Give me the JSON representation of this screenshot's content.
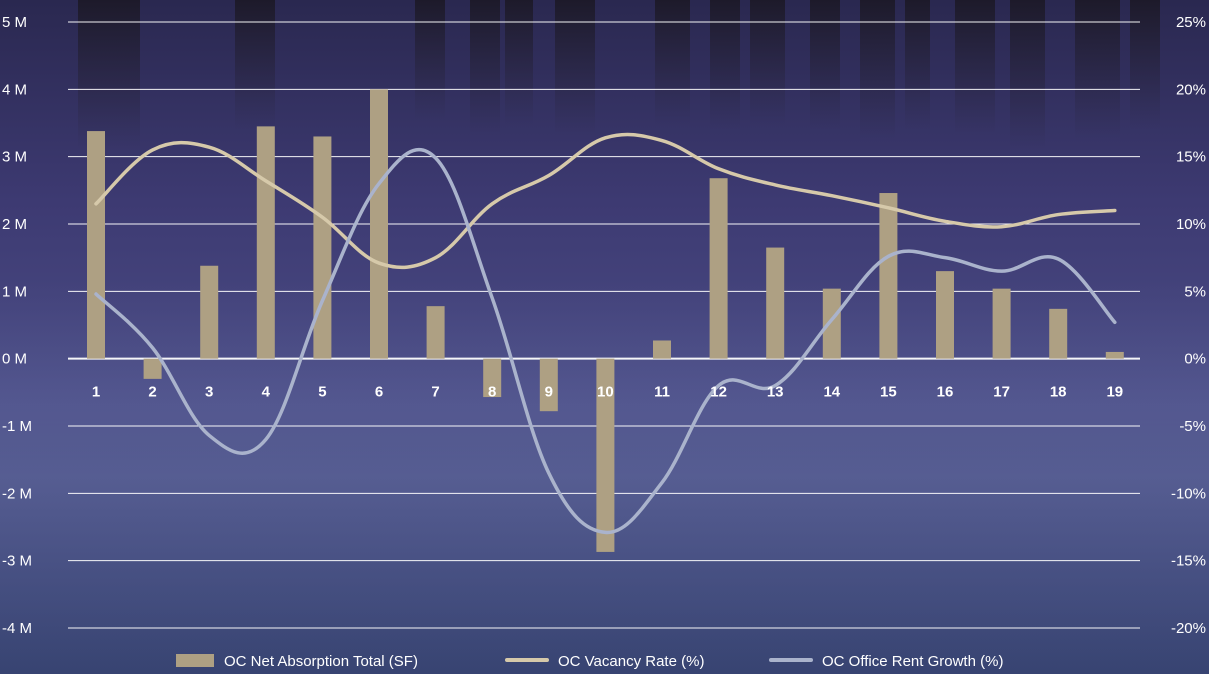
{
  "chart_data": {
    "type": "bar",
    "categories": [
      "1",
      "2",
      "3",
      "4",
      "5",
      "6",
      "7",
      "8",
      "9",
      "10",
      "11",
      "12",
      "13",
      "14",
      "15",
      "16",
      "17",
      "18",
      "19"
    ],
    "series": [
      {
        "name": "OC Net Absorption Total (SF)",
        "kind": "bar",
        "axis": "left",
        "color": "#aea083",
        "values": [
          3.38,
          -0.3,
          1.38,
          3.45,
          3.3,
          4.0,
          0.78,
          -0.57,
          -0.78,
          -2.87,
          0.27,
          2.68,
          1.65,
          1.04,
          2.46,
          1.3,
          1.04,
          0.74,
          0.1
        ]
      },
      {
        "name": "OC Vacancy Rate (%)",
        "kind": "line",
        "axis": "right",
        "color": "#d6c9aa",
        "values": [
          11.5,
          15.5,
          15.7,
          13.2,
          10.5,
          7.1,
          7.5,
          11.5,
          13.6,
          16.4,
          16.2,
          14.1,
          12.9,
          12.1,
          11.2,
          10.2,
          9.8,
          10.7,
          11.0
        ]
      },
      {
        "name": "OC Office Rent Growth (%)",
        "kind": "line",
        "axis": "right",
        "color": "#aab3cc",
        "values": [
          4.8,
          0.8,
          -5.7,
          -6.0,
          4.3,
          13.0,
          14.9,
          4.5,
          -8.5,
          -12.9,
          -9.2,
          -2.0,
          -2.0,
          2.9,
          7.6,
          7.5,
          6.5,
          7.4,
          2.7
        ]
      }
    ],
    "left_axis": {
      "ticks": [
        "5 M",
        "4 M",
        "3 M",
        "2 M",
        "1 M",
        "0 M",
        "-1 M",
        "-2 M",
        "-3 M",
        "-4 M"
      ],
      "range": [
        -4,
        5
      ],
      "unit": "M"
    },
    "right_axis": {
      "ticks": [
        "25%",
        "20%",
        "15%",
        "10%",
        "5%",
        "0%",
        "-5%",
        "-10%",
        "-15%",
        "-20%"
      ],
      "range": [
        -20,
        25
      ],
      "unit": "%"
    },
    "grid": true,
    "legend_position": "bottom",
    "title": "",
    "xlabel": "",
    "ylabel": ""
  },
  "colors": {
    "grid": "#ffffff",
    "text": "#ffffff",
    "bar": "#aea083",
    "vacancy": "#d6c9aa",
    "rent": "#aab3cc"
  }
}
